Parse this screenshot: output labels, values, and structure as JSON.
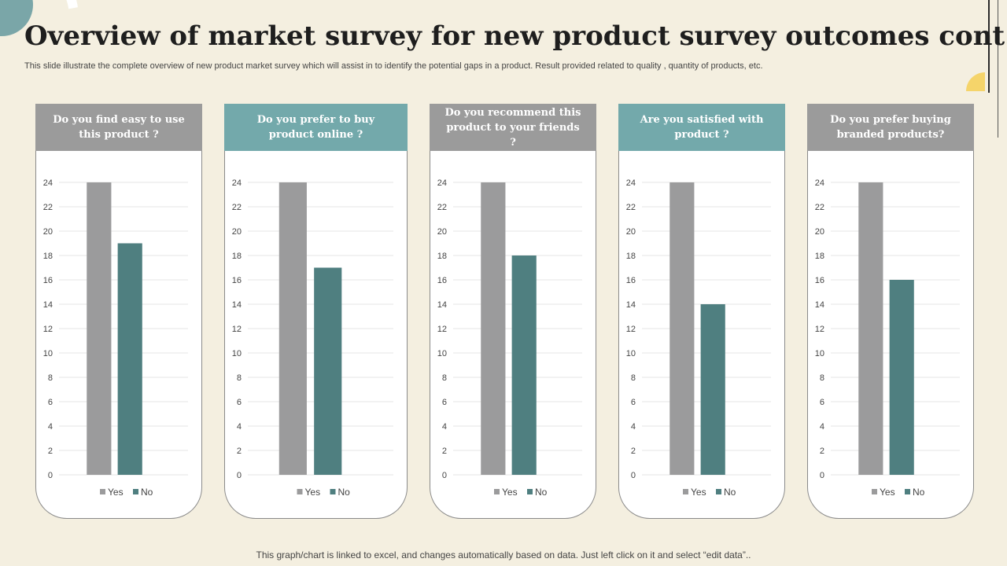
{
  "title": "Overview of market survey for new product survey outcomes cont.",
  "subtitle": "This slide illustrate  the complete overview of new product market survey which will assist in to identify the potential gaps in a product. Result provided related to quality ,  quantity of products, etc.",
  "footer": "This graph/chart is linked to excel,  and changes automatically based on data. Just left click on it and select “edit data”..",
  "colors": {
    "yes": "#9b9b9c",
    "no": "#4f7f80",
    "gray_header": "#9b9b9b",
    "teal_header": "#73a9ab"
  },
  "chart_data": [
    {
      "type": "bar",
      "title": "Do you find easy to use this product ?",
      "categories": [
        "Yes",
        "No"
      ],
      "values": [
        24,
        19
      ],
      "ylim": [
        0,
        24
      ],
      "yticks": [
        0,
        2,
        4,
        6,
        8,
        10,
        12,
        14,
        16,
        18,
        20,
        22,
        24
      ],
      "legend": [
        "Yes",
        "No"
      ]
    },
    {
      "type": "bar",
      "title": "Do you prefer  to buy product online ?",
      "categories": [
        "Yes",
        "No"
      ],
      "values": [
        24,
        17
      ],
      "ylim": [
        0,
        24
      ],
      "yticks": [
        0,
        2,
        4,
        6,
        8,
        10,
        12,
        14,
        16,
        18,
        20,
        22,
        24
      ],
      "legend": [
        "Yes",
        "No"
      ]
    },
    {
      "type": "bar",
      "title": "Do you recommend  this product to your friends ?",
      "categories": [
        "Yes",
        "No"
      ],
      "values": [
        24,
        18
      ],
      "ylim": [
        0,
        24
      ],
      "yticks": [
        0,
        2,
        4,
        6,
        8,
        10,
        12,
        14,
        16,
        18,
        20,
        22,
        24
      ],
      "legend": [
        "Yes",
        "No"
      ]
    },
    {
      "type": "bar",
      "title": "Are you satisfied with product ?",
      "categories": [
        "Yes",
        "No"
      ],
      "values": [
        24,
        14
      ],
      "ylim": [
        0,
        24
      ],
      "yticks": [
        0,
        2,
        4,
        6,
        8,
        10,
        12,
        14,
        16,
        18,
        20,
        22,
        24
      ],
      "legend": [
        "Yes",
        "No"
      ]
    },
    {
      "type": "bar",
      "title": "Do you prefer buying branded products?",
      "categories": [
        "Yes",
        "No"
      ],
      "values": [
        24,
        16
      ],
      "ylim": [
        0,
        24
      ],
      "yticks": [
        0,
        2,
        4,
        6,
        8,
        10,
        12,
        14,
        16,
        18,
        20,
        22,
        24
      ],
      "legend": [
        "Yes",
        "No"
      ]
    }
  ]
}
